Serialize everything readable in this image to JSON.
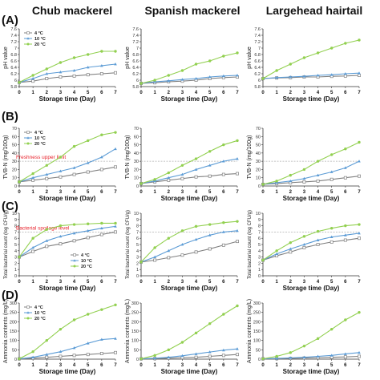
{
  "columns": [
    "Chub mackerel",
    "Spanish mackerel",
    "Largehead hairtail"
  ],
  "xlabel": "Storage time (Day)",
  "colors": {
    "c4": "#808080",
    "c10": "#5b9bd5",
    "c20": "#92d050",
    "ref": "#b0b0b0",
    "refText": "#e8222b"
  },
  "chart_data": [
    {
      "panel": "A",
      "col": 0,
      "type": "line",
      "ylabel": "pH value",
      "ylim": [
        5.8,
        7.6
      ],
      "yticks": [
        "5.8",
        "6",
        "6.2",
        "6.4",
        "6.6",
        "6.8",
        "7",
        "7.2",
        "7.4",
        "7.6"
      ],
      "x": [
        0,
        1,
        2,
        3,
        4,
        5,
        6,
        7
      ],
      "legend": [
        "4 °C",
        "10 °C",
        "20 °C"
      ],
      "series": [
        {
          "name": "4 °C",
          "values": [
            5.93,
            5.97,
            6.05,
            6.1,
            6.13,
            6.17,
            6.2,
            6.23
          ]
        },
        {
          "name": "10 °C",
          "values": [
            5.93,
            6.05,
            6.2,
            6.25,
            6.3,
            6.4,
            6.45,
            6.5
          ]
        },
        {
          "name": "20 °C",
          "values": [
            5.93,
            6.15,
            6.35,
            6.55,
            6.7,
            6.8,
            6.9,
            6.9
          ]
        }
      ]
    },
    {
      "panel": "A",
      "col": 1,
      "type": "line",
      "ylabel": "pH value",
      "ylim": [
        5.8,
        7.6
      ],
      "yticks": [
        "5.8",
        "6",
        "6.2",
        "6.4",
        "6.6",
        "6.8",
        "7",
        "7.2",
        "7.4",
        "7.6"
      ],
      "x": [
        0,
        1,
        2,
        3,
        4,
        5,
        6,
        7
      ],
      "series": [
        {
          "name": "4 °C",
          "values": [
            5.9,
            5.92,
            5.95,
            5.97,
            6.0,
            6.05,
            6.08,
            6.1
          ]
        },
        {
          "name": "10 °C",
          "values": [
            5.9,
            5.95,
            5.98,
            6.02,
            6.05,
            6.1,
            6.13,
            6.15
          ]
        },
        {
          "name": "20 °C",
          "values": [
            5.9,
            6.0,
            6.15,
            6.3,
            6.5,
            6.6,
            6.75,
            6.85
          ]
        }
      ]
    },
    {
      "panel": "A",
      "col": 2,
      "type": "line",
      "ylabel": "pH value",
      "ylim": [
        5.8,
        7.6
      ],
      "yticks": [
        "5.8",
        "6",
        "6.2",
        "6.4",
        "6.6",
        "6.8",
        "7",
        "7.2",
        "7.4",
        "7.6"
      ],
      "x": [
        0,
        1,
        2,
        3,
        4,
        5,
        6,
        7
      ],
      "series": [
        {
          "name": "4 °C",
          "values": [
            6.05,
            6.07,
            6.08,
            6.1,
            6.1,
            6.12,
            6.13,
            6.15
          ]
        },
        {
          "name": "10 °C",
          "values": [
            6.05,
            6.08,
            6.1,
            6.12,
            6.15,
            6.17,
            6.2,
            6.22
          ]
        },
        {
          "name": "20 °C",
          "values": [
            6.05,
            6.3,
            6.5,
            6.7,
            6.85,
            7.0,
            7.15,
            7.25
          ]
        }
      ]
    },
    {
      "panel": "B",
      "col": 0,
      "type": "line",
      "ylabel": "TVB-N (mg/100g)",
      "ylim": [
        0,
        70
      ],
      "yticks": [
        "0",
        "10",
        "20",
        "30",
        "40",
        "50",
        "60",
        "70"
      ],
      "x": [
        0,
        1,
        2,
        3,
        4,
        5,
        6,
        7
      ],
      "legend": [
        "4 °C",
        "10 °C",
        "20 °C"
      ],
      "reference": {
        "y": 30,
        "label": "Freshness upper limit"
      },
      "series": [
        {
          "name": "4 °C",
          "values": [
            5,
            7,
            9,
            11,
            14,
            17,
            20,
            23
          ]
        },
        {
          "name": "10 °C",
          "values": [
            5,
            10,
            14,
            18,
            22,
            28,
            35,
            45
          ]
        },
        {
          "name": "20 °C",
          "values": [
            5,
            15,
            25,
            35,
            48,
            55,
            62,
            65
          ]
        }
      ]
    },
    {
      "panel": "B",
      "col": 1,
      "type": "line",
      "ylabel": "TVB-N (mg/100g)",
      "ylim": [
        0,
        70
      ],
      "yticks": [
        "0",
        "10",
        "20",
        "30",
        "40",
        "50",
        "60",
        "70"
      ],
      "x": [
        0,
        1,
        2,
        3,
        4,
        5,
        6,
        7
      ],
      "reference": {
        "y": 30
      },
      "series": [
        {
          "name": "4 °C",
          "values": [
            3,
            5,
            7,
            9,
            11,
            12,
            14,
            15
          ]
        },
        {
          "name": "10 °C",
          "values": [
            3,
            6,
            10,
            14,
            20,
            25,
            30,
            33
          ]
        },
        {
          "name": "20 °C",
          "values": [
            3,
            8,
            16,
            25,
            33,
            42,
            50,
            55
          ]
        }
      ]
    },
    {
      "panel": "B",
      "col": 2,
      "type": "line",
      "ylabel": "TVB-N (mg/100g)",
      "ylim": [
        0,
        70
      ],
      "yticks": [
        "0",
        "10",
        "20",
        "30",
        "40",
        "50",
        "60",
        "70"
      ],
      "x": [
        0,
        1,
        2,
        3,
        4,
        5,
        6,
        7
      ],
      "reference": {
        "y": 30
      },
      "series": [
        {
          "name": "4 °C",
          "values": [
            2,
            3,
            4,
            5,
            6,
            8,
            10,
            12
          ]
        },
        {
          "name": "10 °C",
          "values": [
            2,
            4,
            6,
            9,
            13,
            17,
            22,
            30
          ]
        },
        {
          "name": "20 °C",
          "values": [
            2,
            6,
            13,
            20,
            30,
            38,
            45,
            53
          ]
        }
      ]
    },
    {
      "panel": "C",
      "col": 0,
      "type": "line",
      "ylabel": "Total bacterial count (log CFU/g)",
      "ylim": [
        0,
        10
      ],
      "yticks": [
        "0",
        "1",
        "2",
        "3",
        "4",
        "5",
        "6",
        "7",
        "8",
        "9",
        "10"
      ],
      "x": [
        0,
        1,
        2,
        3,
        4,
        5,
        6,
        7
      ],
      "legend": [
        "4 °C",
        "10 °C",
        "20 °C"
      ],
      "reference": {
        "y": 7,
        "label": "Bacterial spoilage level"
      },
      "series": [
        {
          "name": "4 °C",
          "values": [
            3,
            3.9,
            4.7,
            5.1,
            5.6,
            6.1,
            6.6,
            7.0
          ]
        },
        {
          "name": "10 °C",
          "values": [
            3,
            4.5,
            5.6,
            6.3,
            6.8,
            7.2,
            7.6,
            7.9
          ]
        },
        {
          "name": "20 °C",
          "values": [
            3,
            6.0,
            7.4,
            8.0,
            8.2,
            8.3,
            8.4,
            8.4
          ]
        }
      ]
    },
    {
      "panel": "C",
      "col": 1,
      "type": "line",
      "ylabel": "Total bacterial count (log CFU/g)",
      "ylim": [
        0,
        10
      ],
      "yticks": [
        "0",
        "1",
        "2",
        "3",
        "4",
        "5",
        "6",
        "7",
        "8",
        "9",
        "10"
      ],
      "x": [
        0,
        1,
        2,
        3,
        4,
        5,
        6,
        7
      ],
      "reference": {
        "y": 7
      },
      "series": [
        {
          "name": "4 °C",
          "values": [
            2.2,
            2.5,
            2.9,
            3.3,
            3.8,
            4.3,
            4.9,
            5.5
          ]
        },
        {
          "name": "10 °C",
          "values": [
            2.2,
            3.0,
            4.0,
            5.0,
            5.8,
            6.5,
            7.0,
            7.2
          ]
        },
        {
          "name": "20 °C",
          "values": [
            2.2,
            4.5,
            6.0,
            7.2,
            7.9,
            8.2,
            8.5,
            8.7
          ]
        }
      ]
    },
    {
      "panel": "C",
      "col": 2,
      "type": "line",
      "ylabel": "Total bacterial count (log CFU/g)",
      "ylim": [
        0,
        10
      ],
      "yticks": [
        "0",
        "1",
        "2",
        "3",
        "4",
        "5",
        "6",
        "7",
        "8",
        "9",
        "10"
      ],
      "x": [
        0,
        1,
        2,
        3,
        4,
        5,
        6,
        7
      ],
      "reference": {
        "y": 7
      },
      "series": [
        {
          "name": "4 °C",
          "values": [
            2.5,
            3.2,
            3.8,
            4.5,
            5.0,
            5.4,
            5.7,
            6.0
          ]
        },
        {
          "name": "10 °C",
          "values": [
            2.5,
            3.5,
            4.3,
            5.0,
            5.7,
            6.2,
            6.5,
            6.8
          ]
        },
        {
          "name": "20 °C",
          "values": [
            2.5,
            4.0,
            5.3,
            6.3,
            7.1,
            7.6,
            8.0,
            8.2
          ]
        }
      ]
    },
    {
      "panel": "D",
      "col": 0,
      "type": "line",
      "ylabel": "Ammonia contents (mg/L)",
      "ylim": [
        0,
        300
      ],
      "yticks": [
        "0",
        "50",
        "100",
        "150",
        "200",
        "250",
        "300"
      ],
      "x": [
        0,
        1,
        2,
        3,
        4,
        5,
        6,
        7
      ],
      "legend": [
        "4 °C",
        "10 °C",
        "20 °C"
      ],
      "series": [
        {
          "name": "4 °C",
          "values": [
            2,
            5,
            10,
            15,
            20,
            25,
            30,
            35
          ]
        },
        {
          "name": "10 °C",
          "values": [
            2,
            10,
            25,
            40,
            60,
            85,
            105,
            110
          ]
        },
        {
          "name": "20 °C",
          "values": [
            2,
            40,
            100,
            160,
            210,
            240,
            265,
            290
          ]
        }
      ]
    },
    {
      "panel": "D",
      "col": 1,
      "type": "line",
      "ylabel": "Ammonia contents (mg/L)",
      "ylim": [
        0,
        300
      ],
      "yticks": [
        "0",
        "50",
        "100",
        "150",
        "200",
        "250",
        "300"
      ],
      "x": [
        0,
        1,
        2,
        3,
        4,
        5,
        6,
        7
      ],
      "series": [
        {
          "name": "4 °C",
          "values": [
            2,
            3,
            5,
            8,
            10,
            15,
            20,
            25
          ]
        },
        {
          "name": "10 °C",
          "values": [
            2,
            5,
            10,
            18,
            28,
            38,
            48,
            55
          ]
        },
        {
          "name": "20 °C",
          "values": [
            2,
            20,
            50,
            90,
            140,
            190,
            240,
            285
          ]
        }
      ]
    },
    {
      "panel": "D",
      "col": 2,
      "type": "line",
      "ylabel": "Ammonia contents (mg/L)",
      "ylim": [
        0,
        300
      ],
      "yticks": [
        "0",
        "50",
        "100",
        "150",
        "200",
        "250",
        "300"
      ],
      "x": [
        0,
        1,
        2,
        3,
        4,
        5,
        6,
        7
      ],
      "series": [
        {
          "name": "4 °C",
          "values": [
            2,
            3,
            4,
            6,
            8,
            10,
            12,
            15
          ]
        },
        {
          "name": "10 °C",
          "values": [
            2,
            4,
            7,
            10,
            15,
            20,
            28,
            35
          ]
        },
        {
          "name": "20 °C",
          "values": [
            2,
            15,
            35,
            70,
            110,
            160,
            210,
            250
          ]
        }
      ]
    }
  ]
}
